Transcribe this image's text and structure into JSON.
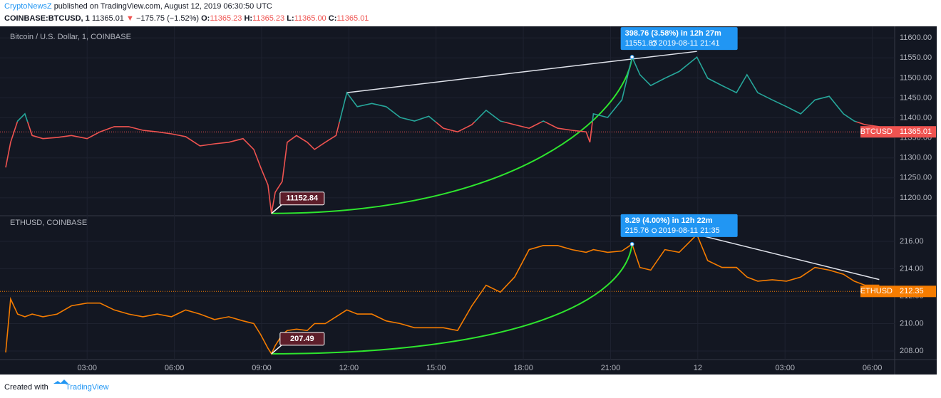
{
  "header": {
    "author": "CryptoNewsZ",
    "published": "published on TradingView.com, August 12, 2019 06:30:50 UTC",
    "symbol": "COINBASE:BTCUSD, 1",
    "last": "11365.01",
    "arrow": "▼",
    "change": "−175.75 (−1.52%)",
    "o_label": "O:",
    "open": "11365.23",
    "h_label": "H:",
    "high": "11365.23",
    "l_label": "L:",
    "low": "11365.00",
    "c_label": "C:",
    "close": "11365.01"
  },
  "footer": {
    "created": "Created with",
    "brand": "TradingView"
  },
  "chart_data": [
    {
      "type": "line",
      "title": "Bitcoin / U.S. Dollar, 1, COINBASE",
      "baseline": 11390,
      "below_color": "#ef5350",
      "x": [
        0.2,
        0.37,
        0.61,
        0.86,
        1.11,
        1.48,
        1.97,
        2.46,
        3.0,
        3.44,
        3.93,
        4.43,
        4.92,
        5.41,
        5.9,
        6.39,
        6.88,
        7.38,
        7.87,
        8.36,
        8.73,
        8.97,
        9.22,
        9.34,
        9.47,
        9.71,
        9.88,
        10.2,
        10.57,
        10.82,
        11.19,
        11.56,
        11.93,
        12.29,
        12.79,
        13.28,
        13.77,
        14.26,
        14.75,
        15.25,
        15.74,
        16.23,
        16.72,
        17.21,
        17.7,
        18.2,
        18.69,
        19.18,
        19.67,
        20.16,
        20.29,
        20.41,
        20.9,
        21.39,
        21.74,
        22.01,
        22.38,
        22.87,
        23.36,
        23.97,
        24.34,
        24.83,
        25.33,
        25.69,
        26.06,
        26.56,
        27.05,
        27.54,
        28.03,
        28.52,
        29.01,
        29.38,
        29.75,
        30.24
      ],
      "series": [
        {
          "name": "BTCUSD",
          "color": "#26a69a",
          "values": [
            11276,
            11339,
            11392,
            11410,
            11356,
            11348,
            11351,
            11356,
            11348,
            11365,
            11378,
            11378,
            11369,
            11365,
            11360,
            11353,
            11330,
            11335,
            11339,
            11348,
            11321,
            11276,
            11232,
            11161,
            11214,
            11241,
            11339,
            11356,
            11339,
            11321,
            11339,
            11356,
            11463,
            11428,
            11436,
            11428,
            11401,
            11392,
            11404,
            11374,
            11365,
            11383,
            11419,
            11392,
            11383,
            11374,
            11392,
            11374,
            11369,
            11365,
            11339,
            11410,
            11401,
            11445,
            11552,
            11508,
            11481,
            11499,
            11516,
            11552,
            11499,
            11481,
            11463,
            11508,
            11463,
            11445,
            11428,
            11410,
            11445,
            11454,
            11410,
            11392,
            11383,
            11378
          ]
        }
      ],
      "last_value": 11365.01,
      "last_color": "#ef5350",
      "measure": {
        "text": "398.76 (3.58%) in 12h 27m",
        "price": 11551.87,
        "time": "2019-08-11  21:41"
      },
      "low_label": 11152.84,
      "xlim": [
        0.2,
        30.77
      ],
      "ylim": [
        11157,
        11620
      ],
      "yticks": [
        {
          "value": 11200,
          "label": "11200.00"
        },
        {
          "value": 11250,
          "label": "11250.00"
        },
        {
          "value": 11300,
          "label": "11300.00"
        },
        {
          "value": 11350,
          "label": "11350.00"
        },
        {
          "value": 11400,
          "label": "11400.00"
        },
        {
          "value": 11450,
          "label": "11450.00"
        },
        {
          "value": 11500,
          "label": "11500.00"
        },
        {
          "value": 11550,
          "label": "11550.00"
        },
        {
          "value": 11600,
          "label": "11600.00"
        }
      ]
    },
    {
      "type": "line",
      "title": "ETHUSD, COINBASE",
      "x": [
        0.2,
        0.37,
        0.61,
        0.86,
        1.11,
        1.48,
        1.97,
        2.46,
        3.0,
        3.44,
        3.93,
        4.43,
        4.92,
        5.41,
        5.9,
        6.39,
        6.88,
        7.38,
        7.87,
        8.36,
        8.73,
        8.97,
        9.22,
        9.34,
        9.47,
        9.71,
        9.88,
        10.2,
        10.57,
        10.82,
        11.19,
        11.56,
        11.93,
        12.29,
        12.79,
        13.28,
        13.77,
        14.26,
        14.75,
        15.25,
        15.74,
        16.23,
        16.72,
        17.21,
        17.7,
        18.2,
        18.69,
        19.18,
        19.67,
        20.16,
        20.29,
        20.41,
        20.9,
        21.39,
        21.74,
        22.01,
        22.38,
        22.87,
        23.36,
        23.97,
        24.34,
        24.83,
        25.33,
        25.69,
        26.06,
        26.56,
        27.05,
        27.54,
        28.03,
        28.52,
        29.01,
        29.38,
        29.75,
        30.24
      ],
      "series": [
        {
          "name": "ETHUSD",
          "color": "#f57c00",
          "values": [
            207.9,
            211.8,
            210.7,
            210.5,
            210.7,
            210.5,
            210.7,
            211.3,
            211.5,
            211.5,
            211.0,
            210.7,
            210.5,
            210.7,
            210.5,
            211.0,
            210.7,
            210.3,
            210.5,
            210.2,
            210.0,
            209.2,
            208.2,
            207.8,
            208.4,
            209.2,
            209.5,
            209.6,
            209.5,
            210.0,
            210.0,
            210.5,
            211.0,
            210.7,
            210.7,
            210.2,
            210.0,
            209.7,
            209.7,
            209.7,
            209.5,
            211.3,
            212.8,
            212.3,
            213.4,
            215.4,
            215.7,
            215.7,
            215.4,
            215.2,
            215.3,
            215.4,
            215.2,
            215.3,
            215.8,
            214.1,
            213.9,
            215.4,
            215.2,
            216.5,
            214.6,
            214.1,
            214.1,
            213.4,
            213.1,
            213.2,
            213.1,
            213.4,
            214.1,
            213.9,
            213.6,
            213.1,
            212.8,
            212.8
          ]
        }
      ],
      "last_value": 212.35,
      "last_color": "#f57c00",
      "measure": {
        "text": "8.29 (4.00%) in 12h 22m",
        "price": 215.76,
        "time": "2019-08-11  21:35"
      },
      "low_label": 207.49,
      "xlim": [
        0.2,
        30.77
      ],
      "ylim": [
        207.38,
        217.87
      ],
      "yticks": [
        {
          "value": 208,
          "label": "208.00"
        },
        {
          "value": 210,
          "label": "210.00"
        },
        {
          "value": 212,
          "label": "212.00"
        },
        {
          "value": 214,
          "label": "214.00"
        },
        {
          "value": 216,
          "label": "216.00"
        }
      ],
      "xticks": [
        {
          "value": 3,
          "label": "03:00"
        },
        {
          "value": 6,
          "label": "06:00"
        },
        {
          "value": 9,
          "label": "09:00"
        },
        {
          "value": 12,
          "label": "12:00"
        },
        {
          "value": 15,
          "label": "15:00"
        },
        {
          "value": 18,
          "label": "18:00"
        },
        {
          "value": 21,
          "label": "21:00"
        },
        {
          "value": 24,
          "label": "12"
        },
        {
          "value": 27,
          "label": "03:00"
        },
        {
          "value": 30,
          "label": "06:00"
        }
      ]
    }
  ]
}
